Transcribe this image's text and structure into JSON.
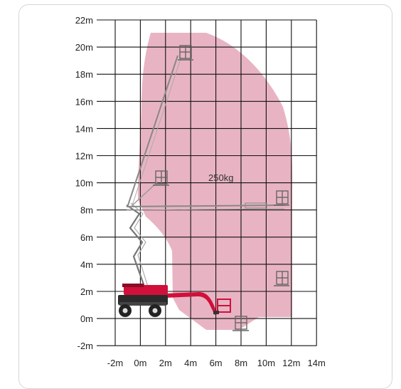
{
  "diagram": {
    "load_label": "250kg",
    "y_ticks": [
      "22m",
      "20m",
      "18m",
      "16m",
      "14m",
      "12m",
      "10m",
      "8m",
      "6m",
      "4m",
      "2m",
      "0m",
      "-2m"
    ],
    "x_ticks": [
      "-2m",
      "0m",
      "2m",
      "4m",
      "6m",
      "8m",
      "10m",
      "12m",
      "14m"
    ],
    "colors": {
      "envelope": "#e8b4c3",
      "grid": "#111111",
      "machine": "#d0103a",
      "wheel": "#222222"
    }
  }
}
